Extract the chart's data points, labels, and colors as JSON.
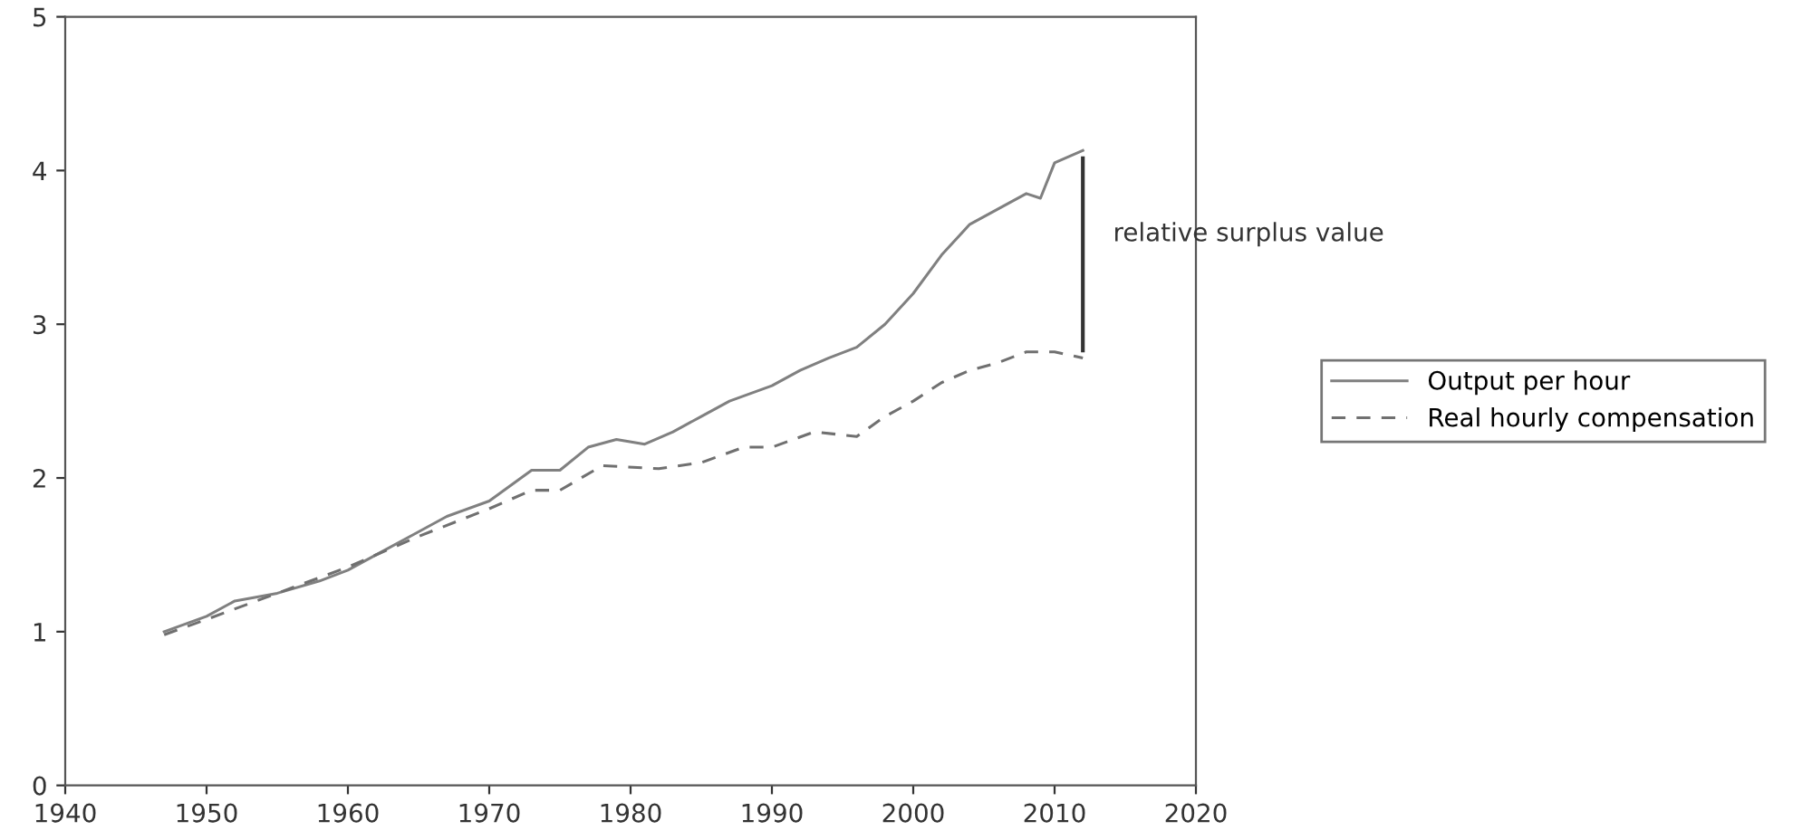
{
  "chart_data": {
    "type": "line",
    "xlim": [
      1940,
      2020
    ],
    "xticks": [
      1940,
      1950,
      1960,
      1970,
      1980,
      1990,
      2000,
      2010,
      2020
    ],
    "ylim": [
      0,
      5
    ],
    "yticks": [
      0,
      1,
      2,
      3,
      4,
      5
    ],
    "grid": false,
    "legend": "right",
    "marker": "none",
    "series": [
      {
        "name": "Output per hour",
        "color": "#808080",
        "line_style": "solid",
        "x": [
          1947,
          1950,
          1952,
          1955,
          1958,
          1960,
          1962,
          1965,
          1967,
          1970,
          1973,
          1975,
          1977,
          1979,
          1981,
          1983,
          1985,
          1987,
          1990,
          1992,
          1994,
          1996,
          1998,
          2000,
          2002,
          2004,
          2006,
          2008,
          2009,
          2010,
          2012
        ],
        "values": [
          1.0,
          1.1,
          1.2,
          1.25,
          1.33,
          1.4,
          1.5,
          1.65,
          1.75,
          1.85,
          2.05,
          2.05,
          2.2,
          2.25,
          2.22,
          2.3,
          2.4,
          2.5,
          2.6,
          2.7,
          2.78,
          2.85,
          3.0,
          3.2,
          3.45,
          3.65,
          3.75,
          3.85,
          3.82,
          4.05,
          4.13
        ]
      },
      {
        "name": "Real hourly compensation",
        "color": "#707070",
        "line_style": "dashed",
        "x": [
          1947,
          1950,
          1955,
          1960,
          1965,
          1970,
          1973,
          1975,
          1978,
          1982,
          1985,
          1988,
          1990,
          1993,
          1996,
          1998,
          2000,
          2002,
          2004,
          2006,
          2008,
          2010,
          2012
        ],
        "values": [
          0.98,
          1.08,
          1.25,
          1.42,
          1.62,
          1.8,
          1.92,
          1.92,
          2.08,
          2.06,
          2.1,
          2.2,
          2.2,
          2.3,
          2.27,
          2.4,
          2.5,
          2.62,
          2.7,
          2.75,
          2.82,
          2.82,
          2.78
        ]
      }
    ],
    "annotations": [
      "relative surplus value"
    ]
  }
}
